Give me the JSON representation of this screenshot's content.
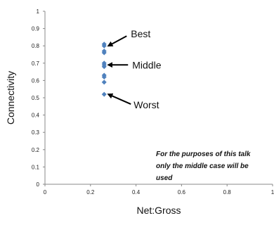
{
  "chart_data": {
    "type": "scatter",
    "xlabel": "Net:Gross",
    "ylabel": "Connectivity",
    "xlim": [
      0,
      1
    ],
    "ylim": [
      0,
      1
    ],
    "x_ticks": [
      "0",
      "0.2",
      "0.4",
      "0.6",
      "0.8",
      "1"
    ],
    "y_ticks": [
      "0",
      "0.1",
      "0.2",
      "0.3",
      "0.4",
      "0.5",
      "0.6",
      "0.7",
      "0.8",
      "0.9",
      "1"
    ],
    "grid": false,
    "legend": "none",
    "marker_color": "#4F81BD",
    "series": [
      {
        "points": [
          {
            "x": 0.26,
            "y": 0.81
          },
          {
            "x": 0.26,
            "y": 0.8
          },
          {
            "x": 0.26,
            "y": 0.77
          },
          {
            "x": 0.26,
            "y": 0.76
          },
          {
            "x": 0.26,
            "y": 0.7
          },
          {
            "x": 0.26,
            "y": 0.69
          },
          {
            "x": 0.26,
            "y": 0.68
          },
          {
            "x": 0.26,
            "y": 0.63
          },
          {
            "x": 0.26,
            "y": 0.62
          },
          {
            "x": 0.26,
            "y": 0.59
          },
          {
            "x": 0.26,
            "y": 0.52
          }
        ]
      }
    ],
    "annotations": [
      {
        "text": "Best",
        "points_to": {
          "x": 0.26,
          "y": 0.8
        }
      },
      {
        "text": "Middle",
        "points_to": {
          "x": 0.26,
          "y": 0.69
        }
      },
      {
        "text": "Worst",
        "points_to": {
          "x": 0.26,
          "y": 0.52
        }
      }
    ],
    "note_lines": [
      "For the purposes of this talk",
      "only the middle case will be",
      "used"
    ]
  }
}
